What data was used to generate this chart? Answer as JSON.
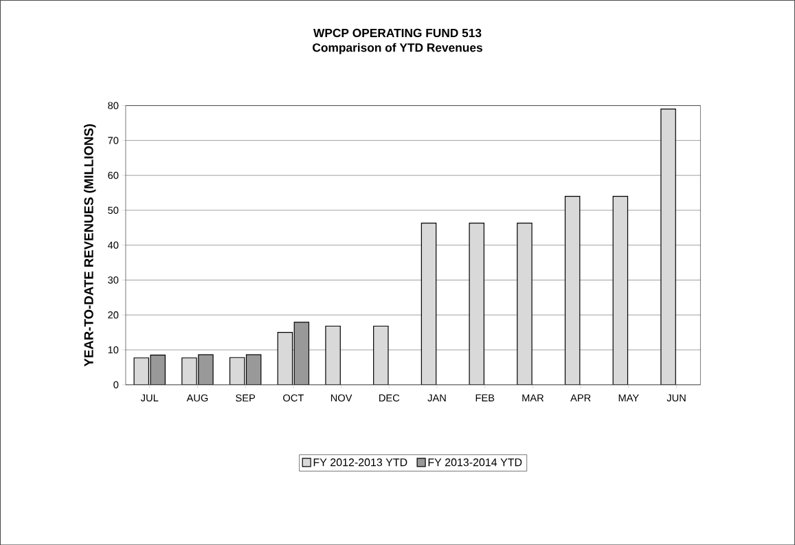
{
  "chart_data": {
    "type": "bar",
    "title": "WPCP OPERATING FUND 513",
    "subtitle": "Comparison of YTD Revenues",
    "ylabel": "YEAR-TO-DATE REVENUES (MILLIONS)",
    "categories": [
      "JUL",
      "AUG",
      "SEP",
      "OCT",
      "NOV",
      "DEC",
      "JAN",
      "FEB",
      "MAR",
      "APR",
      "MAY",
      "JUN"
    ],
    "series": [
      {
        "name": "FY 2012-2013 YTD",
        "color": "#d9d9d9",
        "values": [
          7.7,
          7.7,
          7.8,
          15,
          16.8,
          16.8,
          46.3,
          46.3,
          46.3,
          54,
          54,
          79
        ]
      },
      {
        "name": "FY 2013-2014 YTD",
        "color": "#999999",
        "values": [
          8.5,
          8.6,
          8.6,
          17.9,
          null,
          null,
          null,
          null,
          null,
          null,
          null,
          null
        ]
      }
    ],
    "ylim": [
      0,
      80
    ],
    "yticks": [
      0,
      10,
      20,
      30,
      40,
      50,
      60,
      70,
      80
    ],
    "grid": "y",
    "legend": "bottom"
  }
}
